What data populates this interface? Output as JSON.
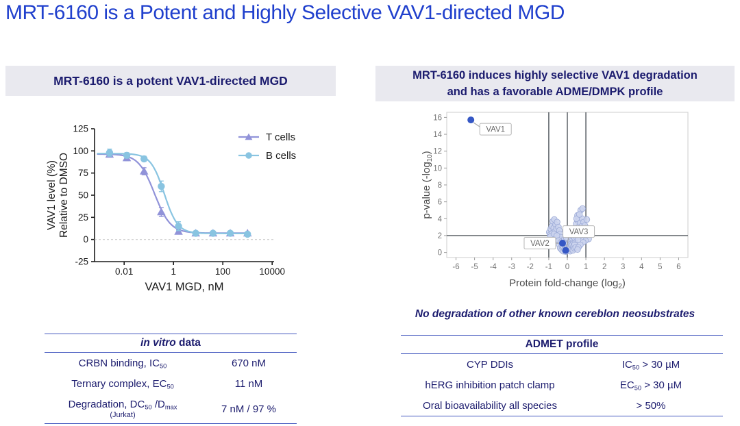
{
  "main": {
    "title": "MRT-6160 is a Potent and Highly Selective VAV1-directed MGD"
  },
  "colors": {
    "title_blue": "#2040cd",
    "navy": "#1b1b6e",
    "band_bg": "#e9e9ef",
    "table_line_blue": "#4055be",
    "t_cells_purple": "#9193d9",
    "b_cells_blue": "#89c4e1",
    "volcano_bg_point_fill": "#ccd4ee",
    "volcano_bg_point_stroke": "#9fadd8",
    "volcano_highlight_blue": "#3557c5",
    "ref_line_gray": "#5b6067",
    "plot_border_gray": "#d6d6d6",
    "tick_gray": "#757575"
  },
  "panels": {
    "left": {
      "header": "MRT-6160 is a potent VAV1-directed MGD",
      "table": {
        "header_segments": [
          {
            "t": "in vitro",
            "italic": true
          },
          {
            "t": " data"
          }
        ],
        "rows": [
          {
            "label": [
              {
                "t": "CRBN binding, IC"
              },
              {
                "s": "50"
              }
            ],
            "value": [
              {
                "t": "670 nM"
              }
            ]
          },
          {
            "label": [
              {
                "t": "Ternary complex, EC"
              },
              {
                "s": "50"
              }
            ],
            "value": [
              {
                "t": "11 nM"
              }
            ]
          },
          {
            "label": [
              {
                "t": "Degradation, DC"
              },
              {
                "s": "50"
              },
              {
                "t": " /D"
              },
              {
                "s": "max"
              }
            ],
            "label_note": "(Jurkat)",
            "value": [
              {
                "t": "7 nM / 97 %"
              }
            ]
          }
        ]
      }
    },
    "right": {
      "header_line1": "MRT-6160 induces highly selective VAV1 degradation",
      "header_line2": "and has a favorable ADME/DMPK profile",
      "note": "No degradation of other known cereblon neosubstrates",
      "table": {
        "header_segments": [
          {
            "t": "ADMET profile"
          }
        ],
        "rows": [
          {
            "label": [
              {
                "t": "CYP DDIs"
              }
            ],
            "value": [
              {
                "t": "IC"
              },
              {
                "s": "50"
              },
              {
                "t": " > 30 µM"
              }
            ]
          },
          {
            "label": [
              {
                "t": "hERG inhibition patch clamp"
              }
            ],
            "value": [
              {
                "t": "EC"
              },
              {
                "s": "50"
              },
              {
                "t": " > 30 µM"
              }
            ]
          },
          {
            "label": [
              {
                "t": "Oral bioavailability all species"
              }
            ],
            "value": [
              {
                "t": "> 50%"
              }
            ]
          }
        ]
      }
    }
  },
  "chart_data": [
    {
      "id": "dose_response",
      "type": "line",
      "title": "",
      "xlabel": "VAV1 MGD, nM",
      "ylabel_lines": [
        "VAV1 level (%)",
        "Relative to DMSO"
      ],
      "x_scale": "log10",
      "x_ticks": [
        0.01,
        1,
        100,
        10000
      ],
      "x_tick_labels": [
        "0.01",
        "1",
        "100",
        "10000"
      ],
      "y_ticks": [
        -25,
        0,
        25,
        50,
        75,
        100,
        125
      ],
      "ylim": [
        -25,
        125
      ],
      "zero_line_dashed": true,
      "legend_position": "top-right",
      "x_nM": [
        0.00256,
        0.0128,
        0.064,
        0.32,
        1.6,
        8,
        40,
        200,
        1000
      ],
      "series": [
        {
          "name": "T cells",
          "marker": "triangle",
          "color": "#9193d9",
          "values": [
            96,
            92,
            77,
            31,
            9,
            7,
            7,
            7,
            7
          ],
          "errors": [
            3,
            3,
            4,
            5,
            2,
            1,
            1,
            1,
            1
          ],
          "fit": {
            "top": 96.5,
            "bottom": 7.2,
            "ec50": 0.17,
            "hill": 1.35
          }
        },
        {
          "name": "B cells",
          "marker": "circle",
          "color": "#89c4e1",
          "values": [
            98,
            95,
            91,
            60,
            15,
            7,
            7,
            7,
            6
          ],
          "errors": [
            4,
            3,
            3,
            6,
            5,
            2,
            1,
            1,
            1
          ],
          "fit": {
            "top": 97.0,
            "bottom": 6.8,
            "ec50": 0.42,
            "hill": 1.6
          }
        }
      ]
    },
    {
      "id": "volcano",
      "type": "scatter",
      "xlabel_segments": [
        {
          "t": "Protein fold-change (log"
        },
        {
          "s": "2"
        },
        {
          "t": ")"
        }
      ],
      "ylabel_segments": [
        {
          "t": "p-value (-log"
        },
        {
          "s": "10"
        },
        {
          "t": ")"
        }
      ],
      "xlim": [
        -6.5,
        6.5
      ],
      "ylim": [
        -0.6,
        16.6
      ],
      "x_ticks": [
        -6,
        -5,
        -4,
        -3,
        -2,
        -1,
        0,
        1,
        2,
        3,
        4,
        5,
        6
      ],
      "y_ticks": [
        0,
        2,
        4,
        6,
        8,
        10,
        12,
        14,
        16
      ],
      "ref_lines": {
        "vertical_x": [
          -1,
          0,
          1
        ],
        "horizontal_y": [
          2
        ]
      },
      "highlights": [
        {
          "label": "VAV1",
          "x": -5.2,
          "y": 15.7
        },
        {
          "label": "VAV2",
          "x": -0.26,
          "y": 1.1
        },
        {
          "label": "VAV3",
          "x": -0.09,
          "y": 0.24
        }
      ],
      "background_points": [
        [
          -0.97,
          2.4
        ],
        [
          -0.93,
          2.1
        ],
        [
          -0.89,
          2.8
        ],
        [
          -0.86,
          1.7
        ],
        [
          -0.83,
          3.1
        ],
        [
          -0.8,
          2.3
        ],
        [
          -0.78,
          3.7
        ],
        [
          -0.75,
          2.0
        ],
        [
          -0.73,
          2.9
        ],
        [
          -0.7,
          3.9
        ],
        [
          -0.68,
          1.8
        ],
        [
          -0.66,
          2.5
        ],
        [
          -0.63,
          3.3
        ],
        [
          -0.6,
          2.1
        ],
        [
          -0.58,
          2.8
        ],
        [
          -0.55,
          3.6
        ],
        [
          -0.53,
          1.6
        ],
        [
          -0.5,
          2.3
        ],
        [
          -0.48,
          3.0
        ],
        [
          -0.45,
          1.9
        ],
        [
          -0.43,
          2.6
        ],
        [
          -0.4,
          1.5
        ],
        [
          -0.38,
          2.2
        ],
        [
          -0.35,
          1.8
        ],
        [
          -0.9,
          1.9
        ],
        [
          -0.72,
          2.2
        ],
        [
          -0.56,
          2.0
        ],
        [
          -0.47,
          1.4
        ],
        [
          -0.42,
          0.9
        ],
        [
          -0.38,
          0.5
        ],
        [
          -0.35,
          1.2
        ],
        [
          -0.3,
          0.3
        ],
        [
          -0.28,
          0.8
        ],
        [
          -0.25,
          1.4
        ],
        [
          -0.22,
          0.15
        ],
        [
          -0.2,
          0.6
        ],
        [
          -0.18,
          1.0
        ],
        [
          -0.15,
          0.35
        ],
        [
          -0.12,
          0.8
        ],
        [
          -0.1,
          1.3
        ],
        [
          -0.08,
          0.1
        ],
        [
          -0.05,
          0.5
        ],
        [
          -0.02,
          0.9
        ],
        [
          0.0,
          0.2
        ],
        [
          0.03,
          0.65
        ],
        [
          0.05,
          1.1
        ],
        [
          0.08,
          0.3
        ],
        [
          0.1,
          0.75
        ],
        [
          0.12,
          1.35
        ],
        [
          0.15,
          0.15
        ],
        [
          0.18,
          0.55
        ],
        [
          0.2,
          1.0
        ],
        [
          0.22,
          0.4
        ],
        [
          0.25,
          0.85
        ],
        [
          0.28,
          1.45
        ],
        [
          0.3,
          0.25
        ],
        [
          0.33,
          0.7
        ],
        [
          0.35,
          1.15
        ],
        [
          0.38,
          0.5
        ],
        [
          0.4,
          0.95
        ],
        [
          0.42,
          1.5
        ],
        [
          0.45,
          0.6
        ],
        [
          -0.16,
          1.55
        ],
        [
          0.06,
          1.6
        ],
        [
          0.24,
          1.7
        ],
        [
          -0.05,
          1.75
        ],
        [
          0.3,
          1.9
        ],
        [
          0.35,
          2.4
        ],
        [
          0.4,
          1.7
        ],
        [
          0.42,
          2.9
        ],
        [
          0.45,
          2.1
        ],
        [
          0.48,
          3.4
        ],
        [
          0.5,
          1.8
        ],
        [
          0.52,
          2.6
        ],
        [
          0.55,
          3.8
        ],
        [
          0.58,
          2.2
        ],
        [
          0.6,
          3.0
        ],
        [
          0.62,
          4.1
        ],
        [
          0.65,
          1.9
        ],
        [
          0.67,
          2.7
        ],
        [
          0.7,
          3.5
        ],
        [
          0.72,
          5.0
        ],
        [
          0.75,
          2.3
        ],
        [
          0.78,
          3.1
        ],
        [
          0.8,
          4.0
        ],
        [
          0.82,
          5.2
        ],
        [
          0.85,
          2.8
        ],
        [
          0.88,
          3.6
        ],
        [
          0.9,
          2.0
        ],
        [
          0.93,
          2.5
        ],
        [
          0.95,
          3.2
        ],
        [
          1.0,
          2.2
        ],
        [
          1.05,
          3.9
        ],
        [
          1.1,
          2.6
        ],
        [
          0.55,
          4.4
        ],
        [
          0.5,
          4.0
        ],
        [
          0.65,
          4.5
        ],
        [
          1.15,
          1.6
        ],
        [
          0.98,
          1.4
        ],
        [
          0.85,
          1.2
        ],
        [
          0.7,
          0.9
        ],
        [
          0.6,
          0.6
        ],
        [
          0.55,
          0.35
        ],
        [
          0.47,
          2.45
        ],
        [
          0.68,
          2.35
        ],
        [
          0.58,
          1.5
        ]
      ]
    }
  ]
}
